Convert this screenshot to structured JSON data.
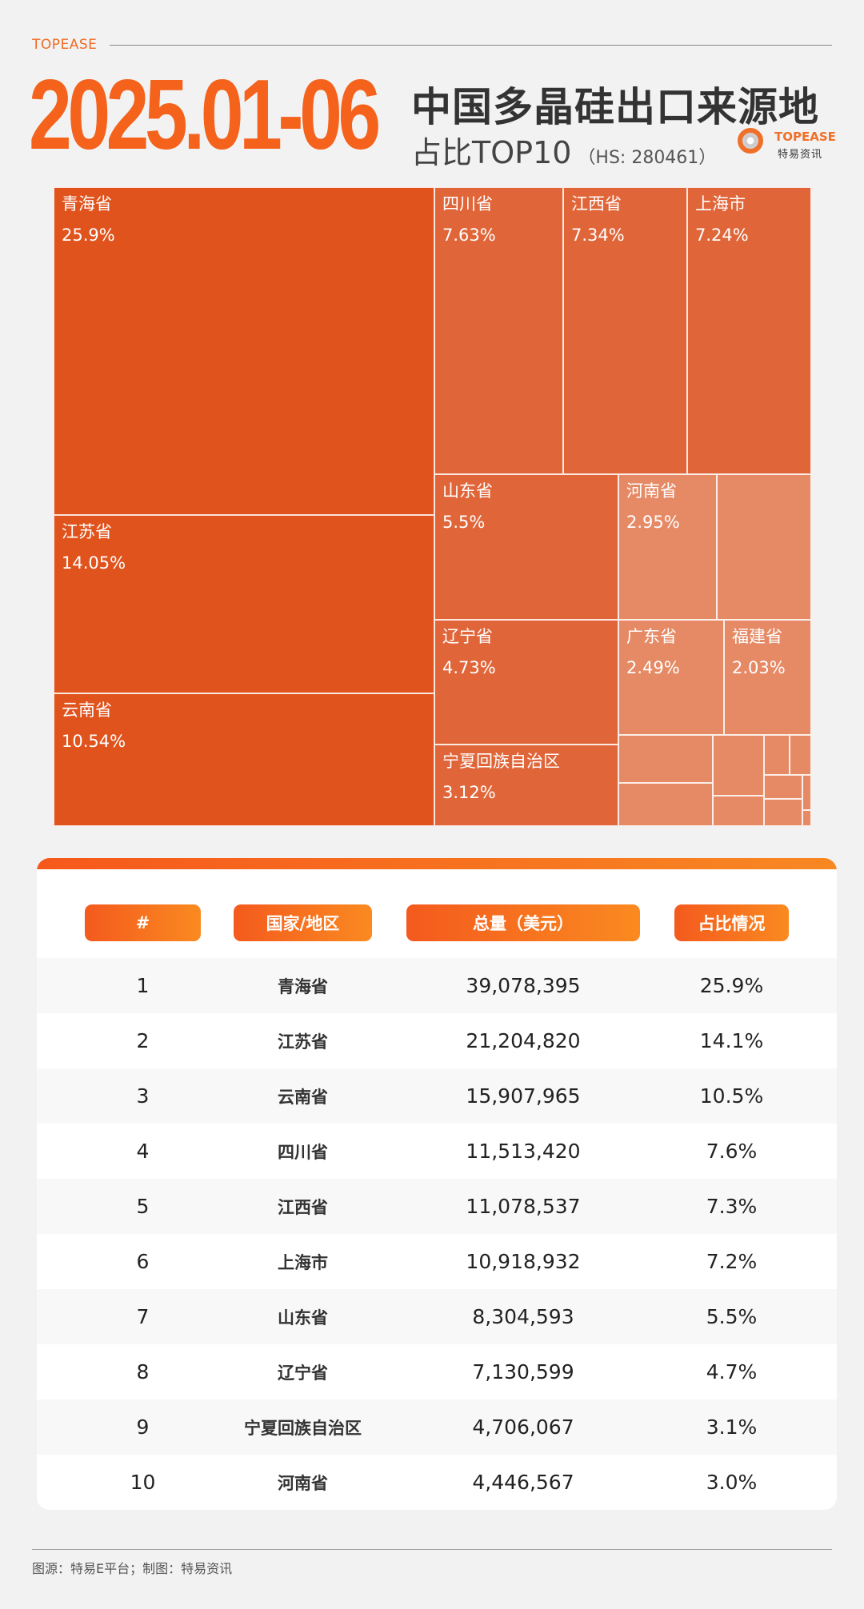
{
  "header": {
    "brand": "TOPEASE",
    "date": "2025.01-06",
    "title": "中国多晶硅出口来源地",
    "subtitle": "占比TOP10",
    "hs_code": "（HS: 280461）",
    "logo_en": "TOPEASE",
    "logo_cn": "特易资讯"
  },
  "colors": {
    "accent": "#f4621c",
    "dark": "#e0531d",
    "mid": "#e0663a",
    "light": "#e68a66"
  },
  "chart_data": {
    "type": "treemap",
    "unit": "%",
    "items": [
      {
        "name": "青海省",
        "label": "25.9%",
        "value": 25.9
      },
      {
        "name": "江苏省",
        "label": "14.05%",
        "value": 14.05
      },
      {
        "name": "云南省",
        "label": "10.54%",
        "value": 10.54
      },
      {
        "name": "四川省",
        "label": "7.63%",
        "value": 7.63
      },
      {
        "name": "江西省",
        "label": "7.34%",
        "value": 7.34
      },
      {
        "name": "上海市",
        "label": "7.24%",
        "value": 7.24
      },
      {
        "name": "山东省",
        "label": "5.5%",
        "value": 5.5
      },
      {
        "name": "辽宁省",
        "label": "4.73%",
        "value": 4.73
      },
      {
        "name": "宁夏回族自治区",
        "label": "3.12%",
        "value": 3.12
      },
      {
        "name": "河南省",
        "label": "2.95%",
        "value": 2.95
      },
      {
        "name": "广东省",
        "label": "2.49%",
        "value": 2.49
      },
      {
        "name": "福建省",
        "label": "2.03%",
        "value": 2.03
      }
    ]
  },
  "table": {
    "headers": [
      "#",
      "国家/地区",
      "总量（美元）",
      "占比情况"
    ],
    "rows": [
      {
        "rank": "1",
        "region": "青海省",
        "total": "39,078,395",
        "share": "25.9%"
      },
      {
        "rank": "2",
        "region": "江苏省",
        "total": "21,204,820",
        "share": "14.1%"
      },
      {
        "rank": "3",
        "region": "云南省",
        "total": "15,907,965",
        "share": "10.5%"
      },
      {
        "rank": "4",
        "region": "四川省",
        "total": "11,513,420",
        "share": "7.6%"
      },
      {
        "rank": "5",
        "region": "江西省",
        "total": "11,078,537",
        "share": "7.3%"
      },
      {
        "rank": "6",
        "region": "上海市",
        "total": "10,918,932",
        "share": "7.2%"
      },
      {
        "rank": "7",
        "region": "山东省",
        "total": "8,304,593",
        "share": "5.5%"
      },
      {
        "rank": "8",
        "region": "辽宁省",
        "total": "7,130,599",
        "share": "4.7%"
      },
      {
        "rank": "9",
        "region": "宁夏回族自治区",
        "total": "4,706,067",
        "share": "3.1%"
      },
      {
        "rank": "10",
        "region": "河南省",
        "total": "4,446,567",
        "share": "3.0%"
      }
    ]
  },
  "footer": {
    "source": "图源：特易E平台；制图：特易资讯"
  }
}
